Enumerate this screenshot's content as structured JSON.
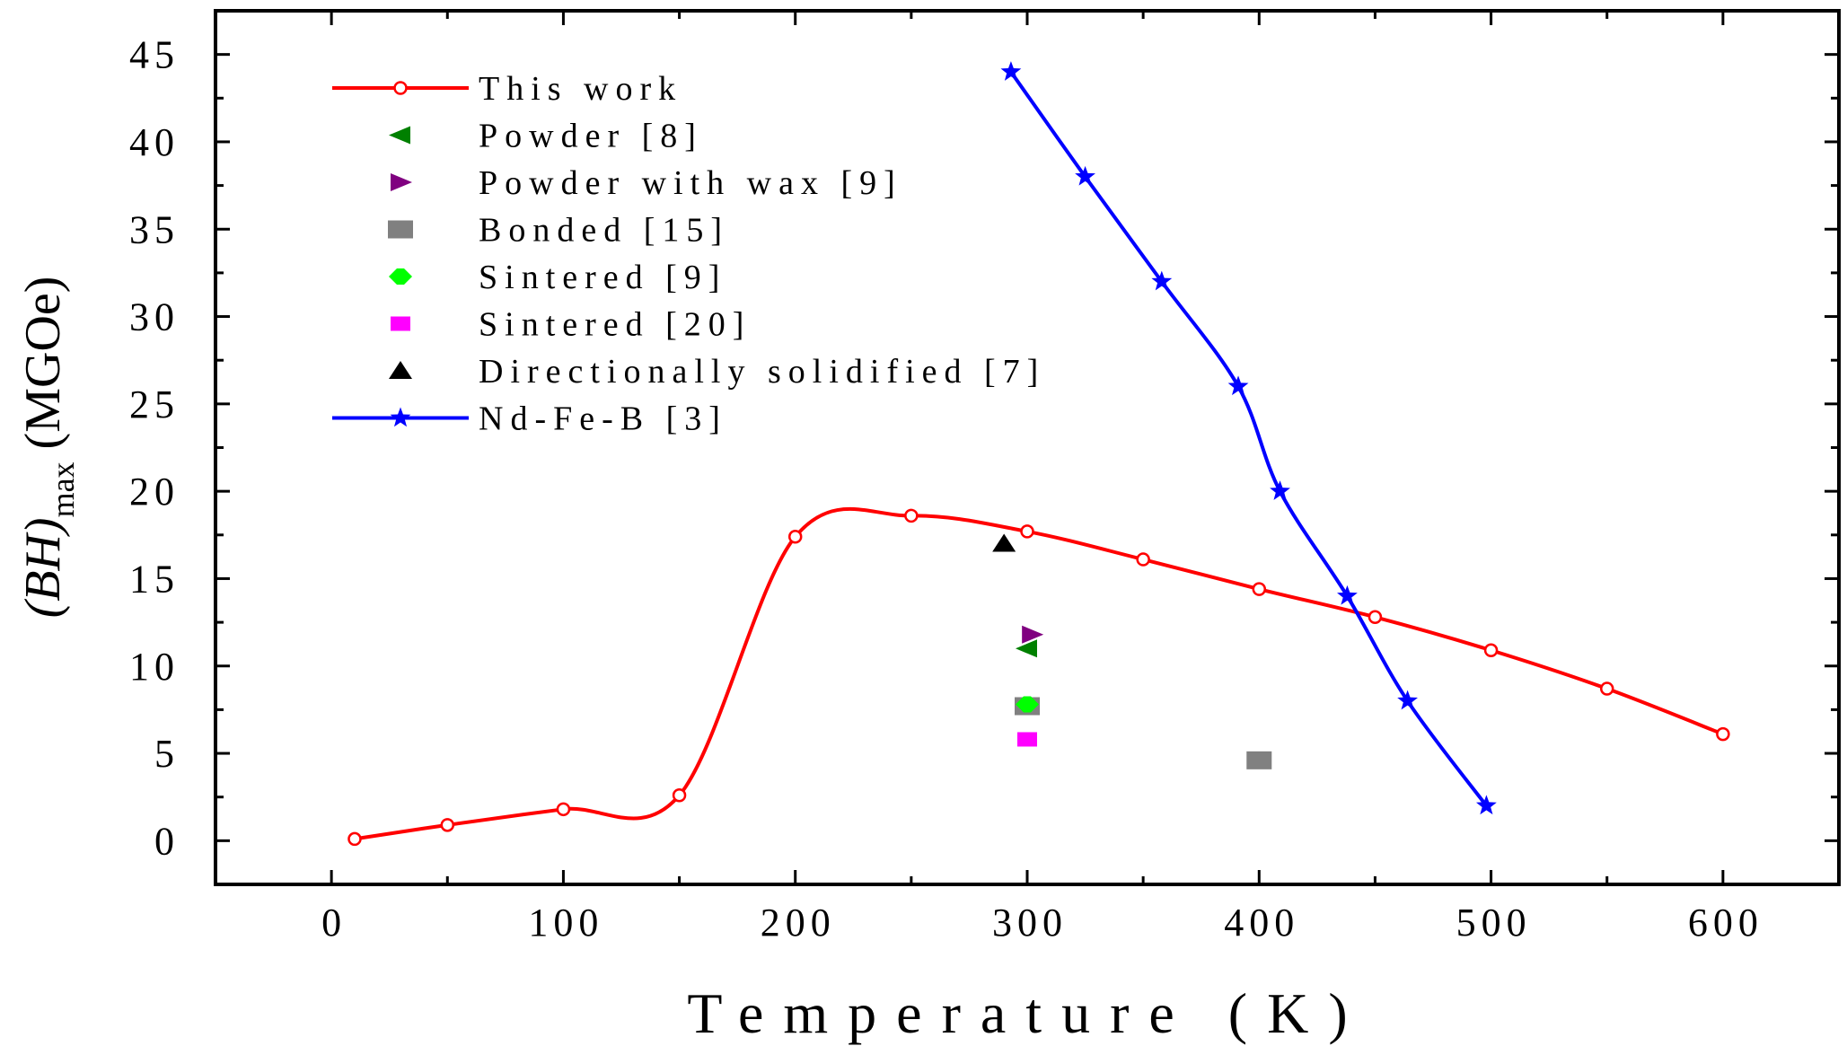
{
  "chart_data": {
    "type": "line",
    "xlabel": "Temperature (K)",
    "ylabel": {
      "prefix": "(BH)",
      "subscript": "max",
      "units": "(MGOe)"
    },
    "xlim": [
      -50,
      650
    ],
    "ylim": [
      -2.5,
      47.5
    ],
    "xticks": [
      0,
      100,
      200,
      300,
      400,
      500,
      600
    ],
    "yticks": [
      0,
      5,
      10,
      15,
      20,
      25,
      30,
      35,
      40,
      45
    ],
    "legend_position": "top-left",
    "series": [
      {
        "name": "This work",
        "marker": "open-circle",
        "color": "#ff0000",
        "line": true,
        "smooth": true,
        "x": [
          10,
          50,
          100,
          150,
          200,
          250,
          300,
          350,
          400,
          450,
          500,
          550,
          600
        ],
        "y": [
          0.1,
          0.9,
          1.8,
          2.6,
          17.4,
          18.6,
          17.7,
          16.1,
          14.4,
          12.8,
          10.9,
          8.7,
          6.1
        ]
      },
      {
        "name": "Powder [8]",
        "marker": "triangle-left",
        "color": "#008000",
        "line": false,
        "x": [
          300
        ],
        "y": [
          11.0
        ]
      },
      {
        "name": "Powder with wax [9]",
        "marker": "triangle-right",
        "color": "#800080",
        "line": false,
        "x": [
          302
        ],
        "y": [
          11.8
        ]
      },
      {
        "name": "Bonded  [15]",
        "marker": "square",
        "color": "#808080",
        "line": false,
        "x": [
          300,
          400
        ],
        "y": [
          7.7,
          4.6
        ]
      },
      {
        "name": "Sintered [9]",
        "marker": "diamond",
        "color": "#00ff00",
        "line": false,
        "x": [
          300
        ],
        "y": [
          7.8
        ]
      },
      {
        "name": "Sintered [20]",
        "marker": "small-square",
        "color": "#ff00ff",
        "line": false,
        "x": [
          300
        ],
        "y": [
          5.8
        ]
      },
      {
        "name": "Directionally solidified [7]",
        "marker": "triangle-up",
        "color": "#000000",
        "line": false,
        "x": [
          290
        ],
        "y": [
          17.0
        ]
      },
      {
        "name": "Nd-Fe-B [3]",
        "marker": "star",
        "color": "#0000ff",
        "line": true,
        "smooth": true,
        "x": [
          293,
          325,
          358,
          391,
          409,
          438,
          464,
          498
        ],
        "y": [
          44.0,
          38.0,
          32.0,
          26.0,
          20.0,
          14.0,
          8.0,
          2.0
        ]
      }
    ]
  }
}
